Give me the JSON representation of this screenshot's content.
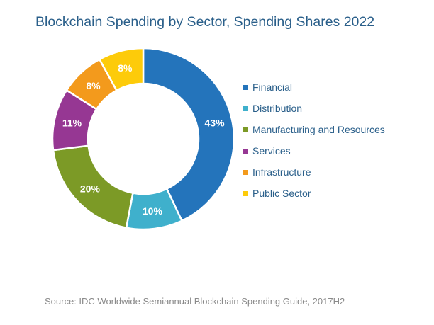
{
  "chart_data": {
    "type": "pie",
    "title": "Blockchain Spending by Sector, Spending Shares 2022",
    "categories": [
      "Financial",
      "Distribution",
      "Manufacturing and Resources",
      "Services",
      "Infrastructure",
      "Public Sector"
    ],
    "values": [
      43,
      10,
      20,
      11,
      8,
      8
    ],
    "data_labels": [
      "43%",
      "10%",
      "20%",
      "11%",
      "8%",
      "8%"
    ],
    "colors": [
      "#2474bb",
      "#3fb0cc",
      "#7c9a26",
      "#963793",
      "#f39a1c",
      "#fdcb0a"
    ],
    "donut": true,
    "legend_position": "right"
  },
  "source": "Source: IDC Worldwide Semiannual Blockchain Spending Guide, 2017H2"
}
